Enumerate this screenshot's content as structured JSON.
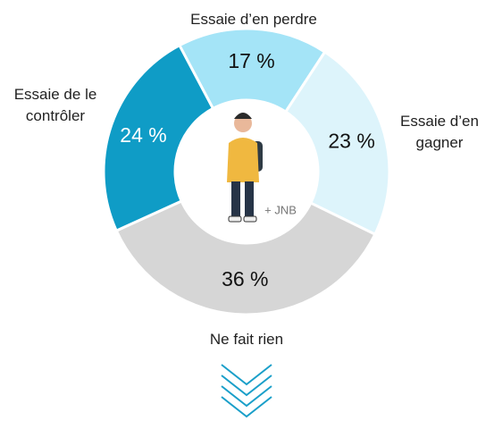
{
  "chart_data": {
    "type": "pie",
    "categories": [
      "Essaie d’en perdre",
      "Essaie d’en gagner",
      "Ne fait rien",
      "Essaie de le contrôler"
    ],
    "values": [
      17,
      23,
      36,
      24
    ],
    "value_labels": [
      "17 %",
      "23 %",
      "36 %",
      "24 %"
    ],
    "colors": [
      "#a4e4f7",
      "#ddf4fb",
      "#d6d6d6",
      "#0f9cc6"
    ],
    "center_note": "+ JNB"
  }
}
